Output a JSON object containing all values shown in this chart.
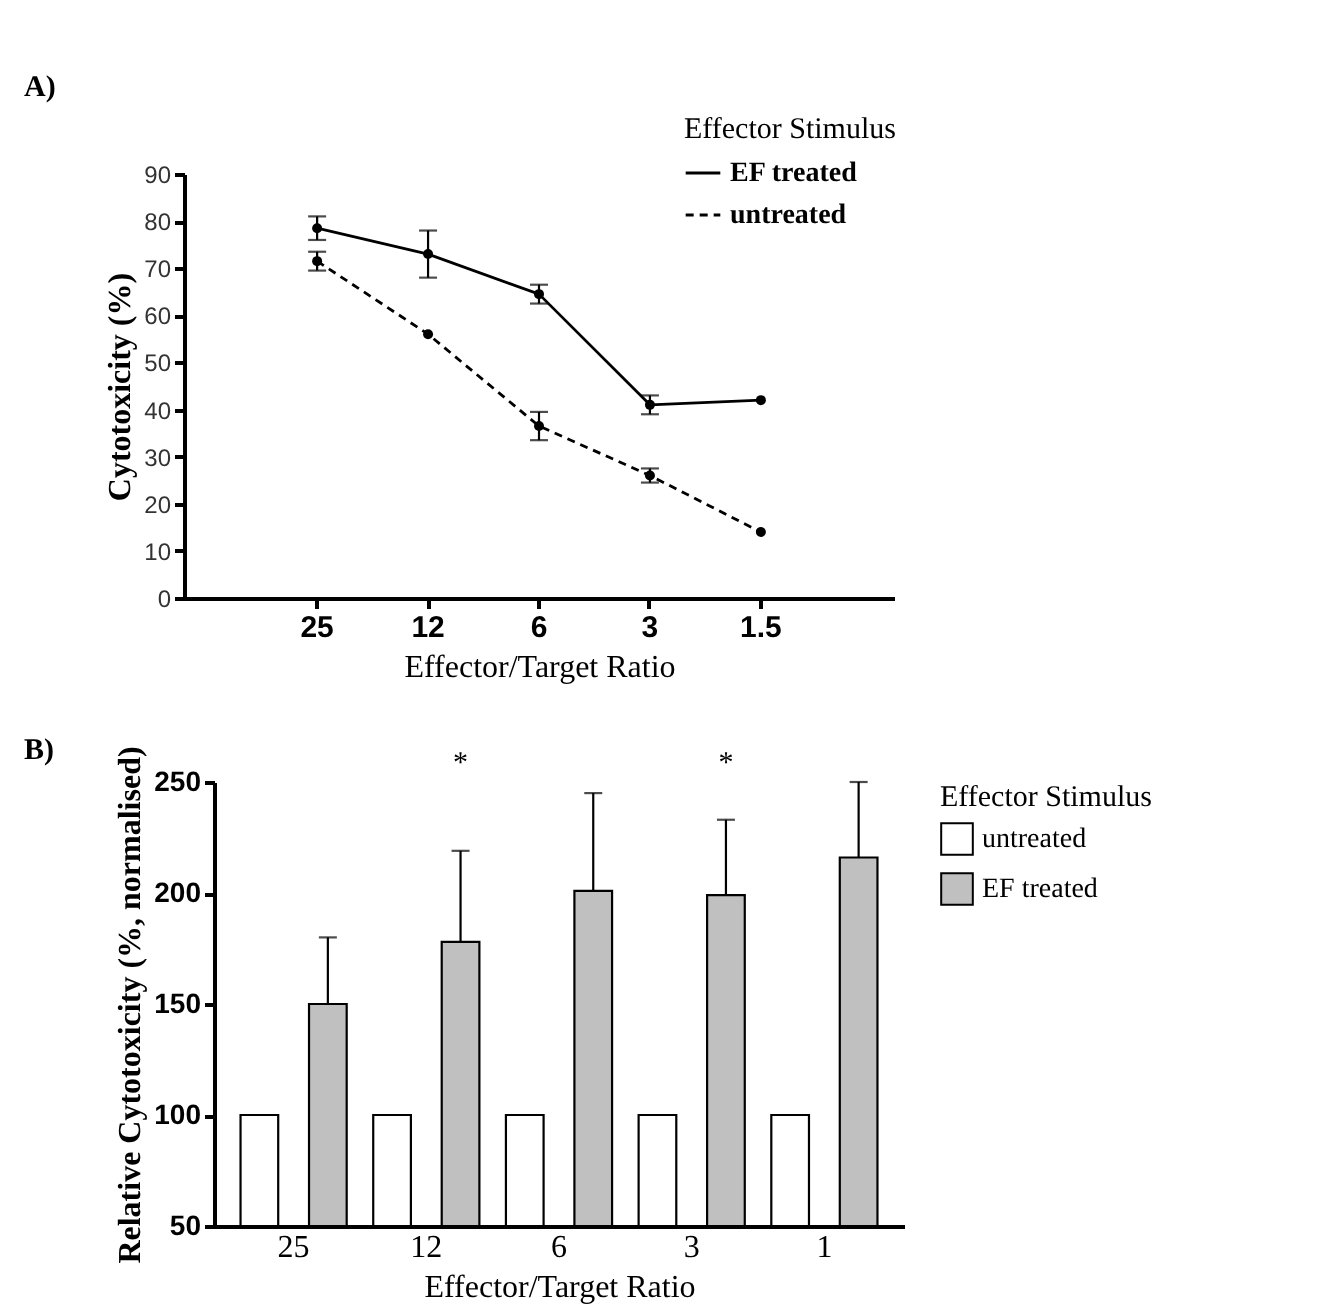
{
  "chart_data": [
    {
      "type": "line",
      "title": "A)",
      "xlabel": "Effector/Target Ratio",
      "ylabel": "Cytotoxicity (%)",
      "legend_title": "Effector Stimulus",
      "legend": "top right",
      "marker": "circle",
      "categories": [
        "25",
        "12",
        "6",
        "3",
        "1.5"
      ],
      "ylim": [
        0,
        90
      ],
      "yticks": [
        0,
        10,
        20,
        30,
        40,
        50,
        60,
        70,
        80,
        90
      ],
      "series": [
        {
          "name": "EF treated",
          "color": "#000000",
          "line_style": "solid",
          "values": [
            78.5,
            73,
            64.5,
            41,
            42
          ],
          "errors": [
            2.5,
            5,
            2,
            2,
            null
          ]
        },
        {
          "name": "untreated",
          "color": "#000000",
          "line_style": "dashed",
          "values": [
            71.5,
            56,
            36.5,
            26,
            14
          ],
          "errors": [
            2,
            null,
            3,
            1.5,
            null
          ]
        }
      ]
    },
    {
      "type": "bar",
      "title": "B)",
      "xlabel": "Effector/Target Ratio",
      "ylabel": "Relative Cytotoxicity (%, normalised)",
      "legend_title": "Effector Stimulus",
      "legend": "right",
      "categories": [
        "25",
        "12",
        "6",
        "3",
        "1"
      ],
      "ylim": [
        50,
        250
      ],
      "yticks": [
        50,
        100,
        150,
        200,
        250
      ],
      "series": [
        {
          "name": "untreated",
          "color": "#ffffff",
          "values": [
            100,
            100,
            100,
            100,
            100
          ]
        },
        {
          "name": "EF treated",
          "color": "#c0c0c0",
          "values": [
            150,
            178,
            201,
            199,
            216
          ],
          "errors": [
            [
              150,
              180
            ],
            [
              178,
              219
            ],
            [
              201,
              245
            ],
            [
              199,
              233
            ],
            [
              216,
              250
            ]
          ]
        }
      ],
      "annotations": [
        "*",
        "*"
      ]
    }
  ]
}
